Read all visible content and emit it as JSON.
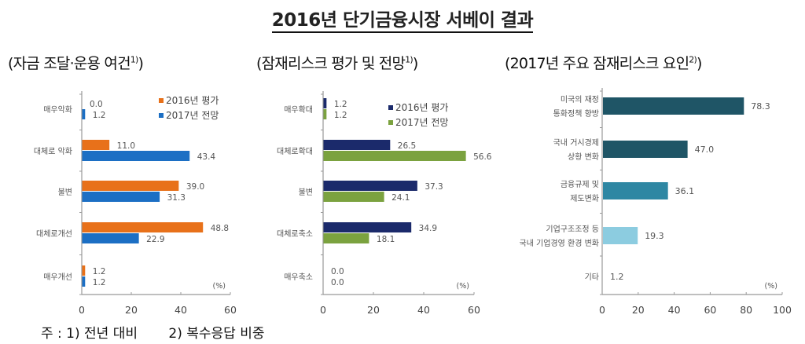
{
  "title": "2016년 단기금융시장 서베이 결과",
  "footnotes": [
    "주 : 1) 전년 대비",
    "2) 복수응답 비중"
  ],
  "chart_data": [
    {
      "type": "bar",
      "orientation": "horizontal",
      "title": "(자금 조달·운용 여건",
      "title_sup": "1)",
      "categories": [
        "매우악화",
        "대체로 악화",
        "불변",
        "대체로개선",
        "매우개선"
      ],
      "series": [
        {
          "name": "2016년 평가",
          "color": "#E8711A",
          "values": [
            0.0,
            11.0,
            39.0,
            48.8,
            1.2
          ]
        },
        {
          "name": "2017년 전망",
          "color": "#1C6FC4",
          "values": [
            1.2,
            43.4,
            31.3,
            22.9,
            1.2
          ]
        }
      ],
      "xlabel": "",
      "ylabel": "",
      "unit": "(%)",
      "xlim": [
        0,
        60
      ],
      "xticks": [
        0,
        20,
        40,
        60
      ],
      "legend_position": "upper right",
      "grid": false
    },
    {
      "type": "bar",
      "orientation": "horizontal",
      "title": "(잠재리스크 평가 및 전망",
      "title_sup": "1)",
      "categories": [
        "매우확대",
        "대체로확대",
        "불변",
        "대체로축소",
        "매우축소"
      ],
      "series": [
        {
          "name": "2016년 평가",
          "color": "#1B2A6B",
          "values": [
            1.2,
            26.5,
            37.3,
            34.9,
            0.0
          ]
        },
        {
          "name": "2017년 전망",
          "color": "#7BA23F",
          "values": [
            1.2,
            56.6,
            24.1,
            18.1,
            0.0
          ]
        }
      ],
      "xlabel": "",
      "ylabel": "",
      "unit": "(%)",
      "xlim": [
        0,
        60
      ],
      "xticks": [
        0,
        20,
        40,
        60
      ],
      "legend_position": "upper right",
      "grid": false
    },
    {
      "type": "bar",
      "orientation": "horizontal",
      "title": "(2017년 주요 잠재리스크 요인",
      "title_sup": "2)",
      "categories": [
        [
          "미국의 재정",
          "통화정책 향방"
        ],
        [
          "국내 거시경제",
          "상황 변화"
        ],
        [
          "금융규제 및",
          "제도변화"
        ],
        [
          "기업구조조정 등",
          "국내 기업경영 환경 변화"
        ],
        [
          "기타"
        ]
      ],
      "values": [
        78.3,
        47.0,
        36.1,
        19.3,
        1.2
      ],
      "colors": [
        "#1F5566",
        "#1F5566",
        "#2E87A3",
        "#8CCCE0",
        "#8CCCE0"
      ],
      "xlabel": "",
      "ylabel": "",
      "unit": "(%)",
      "xlim": [
        0,
        100
      ],
      "xticks": [
        0,
        20,
        40,
        60,
        80,
        100
      ],
      "grid": false
    }
  ]
}
